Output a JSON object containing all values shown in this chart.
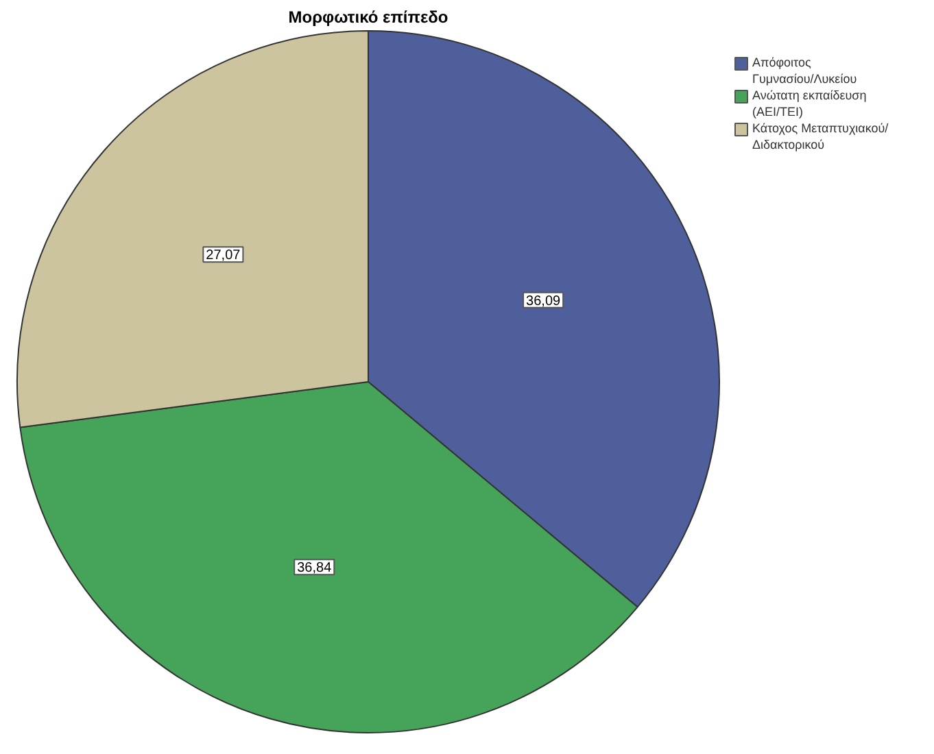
{
  "chart_data": {
    "type": "pie",
    "title": "Μορφωτικό επίπεδο",
    "categories": [
      "Απόφοιτος Γυμνασίου/Λυκείου",
      "Ανώτατη εκπαίδευση (ΑΕΙ/ΤΕΙ)",
      "Κάτοχος Μεταπτυχιακού/ Διδακτορικού"
    ],
    "values": [
      36.09,
      36.84,
      27.07
    ],
    "value_labels": [
      "36,09",
      "36,84",
      "27,07"
    ],
    "colors": [
      "#4f5f9b",
      "#46a45a",
      "#cbc49e"
    ],
    "legend": "top right"
  }
}
